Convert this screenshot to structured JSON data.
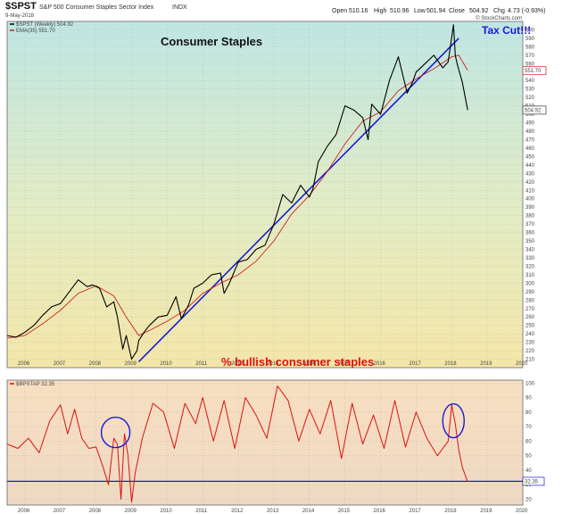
{
  "header": {
    "symbol": "$SPST",
    "name": "S&P 500 Consumer Staples Sector Index",
    "exchange": "INDX",
    "date": "9-May-2018",
    "open_label": "Open",
    "open": "510.16",
    "high_label": "High",
    "high": "510.96",
    "low_label": "Low",
    "low": "501.94",
    "close_label": "Close",
    "close": "504.92",
    "chg_label": "Chg",
    "chg": "4.73 (-0.93%)",
    "watermark": "© StockCharts.com"
  },
  "colors": {
    "price_line": "#000000",
    "ema_line": "#cc2222",
    "trend_line": "#1a1ad6",
    "bullish_line": "#dd1111",
    "annotation_blue": "#1a1ad6",
    "annotation_red": "#dd1111"
  },
  "upper_panel": {
    "legend_price": "$SPST (Weekly) 504.92",
    "legend_ema": "EMA(35) 551.70",
    "title": "Consumer Staples",
    "annotation": "Tax Cut!!!",
    "price_tag": "504.92",
    "ema_tag": "551.70"
  },
  "lower_panel": {
    "legend": "$BPSTAP 32.35",
    "title": "% bullish consumer staples",
    "value_tag": "32.35"
  },
  "chart_data": [
    {
      "type": "line",
      "title": "Consumer Staples",
      "ylim": [
        200,
        610
      ],
      "xlim": [
        2005.5,
        2020.0
      ],
      "x_ticks": [
        "2006",
        "2007",
        "2008",
        "2009",
        "2010",
        "2011",
        "2012",
        "2013",
        "2014",
        "2015",
        "2016",
        "2017",
        "2018",
        "2019",
        "2020"
      ],
      "y_ticks": [
        210,
        220,
        230,
        240,
        250,
        260,
        270,
        280,
        290,
        300,
        310,
        320,
        330,
        340,
        350,
        360,
        370,
        380,
        390,
        400,
        410,
        420,
        430,
        440,
        450,
        460,
        470,
        480,
        490,
        500,
        510,
        520,
        530,
        540,
        550,
        560,
        570,
        580,
        590,
        600
      ],
      "series": [
        {
          "name": "$SPST (Weekly)",
          "x": [
            2005.5,
            2005.75,
            2006.0,
            2006.25,
            2006.5,
            2006.75,
            2007.0,
            2007.25,
            2007.5,
            2007.75,
            2007.9,
            2008.1,
            2008.3,
            2008.5,
            2008.6,
            2008.75,
            2008.85,
            2009.0,
            2009.15,
            2009.2,
            2009.35,
            2009.5,
            2009.75,
            2010.0,
            2010.25,
            2010.4,
            2010.6,
            2010.75,
            2011.0,
            2011.25,
            2011.5,
            2011.6,
            2011.75,
            2012.0,
            2012.25,
            2012.5,
            2012.75,
            2013.0,
            2013.25,
            2013.5,
            2013.75,
            2014.0,
            2014.1,
            2014.25,
            2014.5,
            2014.75,
            2015.0,
            2015.25,
            2015.5,
            2015.65,
            2015.75,
            2016.0,
            2016.25,
            2016.5,
            2016.75,
            2016.9,
            2017.0,
            2017.25,
            2017.5,
            2017.75,
            2017.9,
            2018.05,
            2018.1,
            2018.15,
            2018.3,
            2018.45
          ],
          "values": [
            238,
            236,
            242,
            250,
            262,
            272,
            276,
            290,
            304,
            296,
            298,
            294,
            272,
            278,
            260,
            222,
            238,
            210,
            220,
            232,
            242,
            250,
            260,
            262,
            284,
            258,
            274,
            294,
            300,
            310,
            312,
            288,
            300,
            325,
            328,
            340,
            345,
            370,
            405,
            395,
            416,
            402,
            412,
            444,
            462,
            476,
            510,
            505,
            496,
            470,
            512,
            500,
            540,
            568,
            525,
            538,
            550,
            560,
            570,
            555,
            562,
            606,
            570,
            560,
            538,
            505
          ]
        },
        {
          "name": "EMA(35)",
          "x": [
            2005.5,
            2006.0,
            2006.5,
            2007.0,
            2007.5,
            2008.0,
            2008.5,
            2008.85,
            2009.2,
            2009.5,
            2010.0,
            2010.5,
            2011.0,
            2011.5,
            2012.0,
            2012.5,
            2013.0,
            2013.5,
            2014.0,
            2014.5,
            2015.0,
            2015.5,
            2016.0,
            2016.5,
            2017.0,
            2017.5,
            2018.0,
            2018.2,
            2018.45
          ],
          "values": [
            235,
            238,
            252,
            268,
            288,
            297,
            285,
            260,
            238,
            244,
            255,
            268,
            288,
            300,
            310,
            326,
            350,
            382,
            404,
            432,
            465,
            492,
            503,
            528,
            542,
            554,
            568,
            570,
            552
          ]
        },
        {
          "name": "trendline",
          "x": [
            2009.2,
            2018.2
          ],
          "values": [
            207,
            590
          ]
        }
      ]
    },
    {
      "type": "line",
      "title": "% bullish consumer staples",
      "ylim": [
        16,
        102
      ],
      "xlim": [
        2005.5,
        2020.0
      ],
      "y_ticks": [
        20,
        30,
        40,
        50,
        60,
        70,
        80,
        90,
        100
      ],
      "series": [
        {
          "name": "$BPSTAP",
          "x": [
            2005.5,
            2005.8,
            2006.1,
            2006.4,
            2006.7,
            2007.0,
            2007.2,
            2007.4,
            2007.6,
            2007.8,
            2008.0,
            2008.2,
            2008.35,
            2008.5,
            2008.6,
            2008.7,
            2008.8,
            2008.9,
            2009.0,
            2009.1,
            2009.3,
            2009.6,
            2009.9,
            2010.2,
            2010.5,
            2010.8,
            2011.0,
            2011.3,
            2011.6,
            2011.9,
            2012.2,
            2012.5,
            2012.8,
            2013.1,
            2013.4,
            2013.7,
            2014.0,
            2014.3,
            2014.6,
            2014.9,
            2015.2,
            2015.5,
            2015.8,
            2016.1,
            2016.4,
            2016.7,
            2017.0,
            2017.3,
            2017.6,
            2017.9,
            2018.0,
            2018.1,
            2018.2,
            2018.3,
            2018.45
          ],
          "values": [
            58,
            55,
            62,
            52,
            74,
            85,
            65,
            82,
            62,
            55,
            56,
            42,
            30,
            62,
            58,
            20,
            65,
            50,
            18,
            38,
            62,
            86,
            80,
            55,
            86,
            72,
            90,
            60,
            88,
            55,
            90,
            78,
            62,
            98,
            88,
            60,
            82,
            65,
            88,
            48,
            86,
            58,
            78,
            55,
            88,
            56,
            80,
            62,
            50,
            60,
            85,
            72,
            54,
            42,
            32
          ]
        },
        {
          "name": "baseline",
          "x": [
            2005.5,
            2020.0
          ],
          "values": [
            32.35,
            32.35
          ]
        }
      ]
    }
  ]
}
